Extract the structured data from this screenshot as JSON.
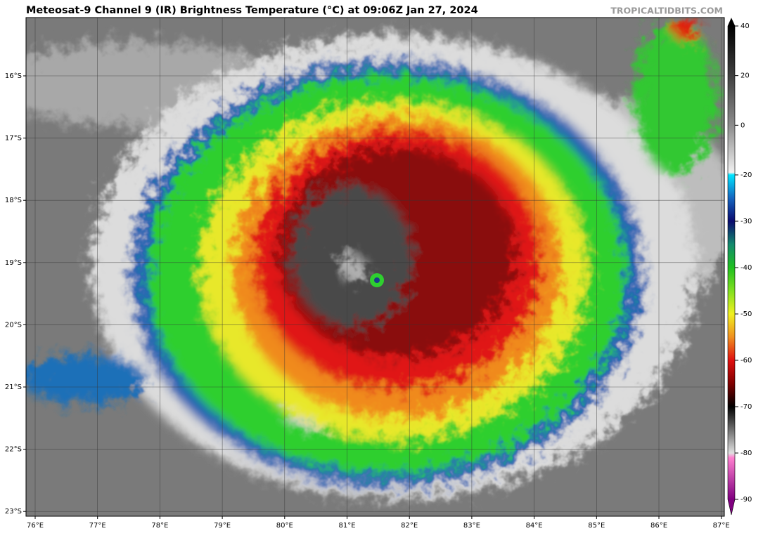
{
  "header": {
    "title": "Meteosat-9 Channel 9 (IR) Brightness Temperature (°C) at 09:06Z Jan 27, 2024",
    "watermark": "TROPICALTIDBITS.COM"
  },
  "map": {
    "latitude_labels": [
      "16°S",
      "17°S",
      "18°S",
      "19°S",
      "20°S",
      "21°S",
      "22°S",
      "23°S"
    ],
    "longitude_labels": [
      "76°E",
      "77°E",
      "78°E",
      "79°E",
      "80°E",
      "81°E",
      "82°E",
      "83°E",
      "84°E",
      "85°E",
      "86°E",
      "87°E"
    ]
  },
  "colorbar": {
    "ticks": [
      40,
      20,
      0,
      -20,
      -30,
      -40,
      -50,
      -60,
      -70,
      -80,
      -90
    ],
    "stops": [
      {
        "value": 40,
        "color": "#000000"
      },
      {
        "value": 20,
        "color": "#404040"
      },
      {
        "value": 0,
        "color": "#8c8c8c"
      },
      {
        "value": -19,
        "color": "#f0f0f0"
      },
      {
        "value": -20,
        "color": "#00e5ff"
      },
      {
        "value": -25,
        "color": "#1565c0"
      },
      {
        "value": -30,
        "color": "#0a0a6e"
      },
      {
        "value": -35,
        "color": "#138a6e"
      },
      {
        "value": -40,
        "color": "#20c020"
      },
      {
        "value": -45,
        "color": "#80e020"
      },
      {
        "value": -50,
        "color": "#f0f020"
      },
      {
        "value": -55,
        "color": "#f09020"
      },
      {
        "value": -60,
        "color": "#e01010"
      },
      {
        "value": -65,
        "color": "#800000"
      },
      {
        "value": -70,
        "color": "#000000"
      },
      {
        "value": -75,
        "color": "#707070"
      },
      {
        "value": -80,
        "color": "#e0e0e0"
      },
      {
        "value": -81,
        "color": "#ff80d0"
      },
      {
        "value": -90,
        "color": "#800080"
      }
    ]
  }
}
